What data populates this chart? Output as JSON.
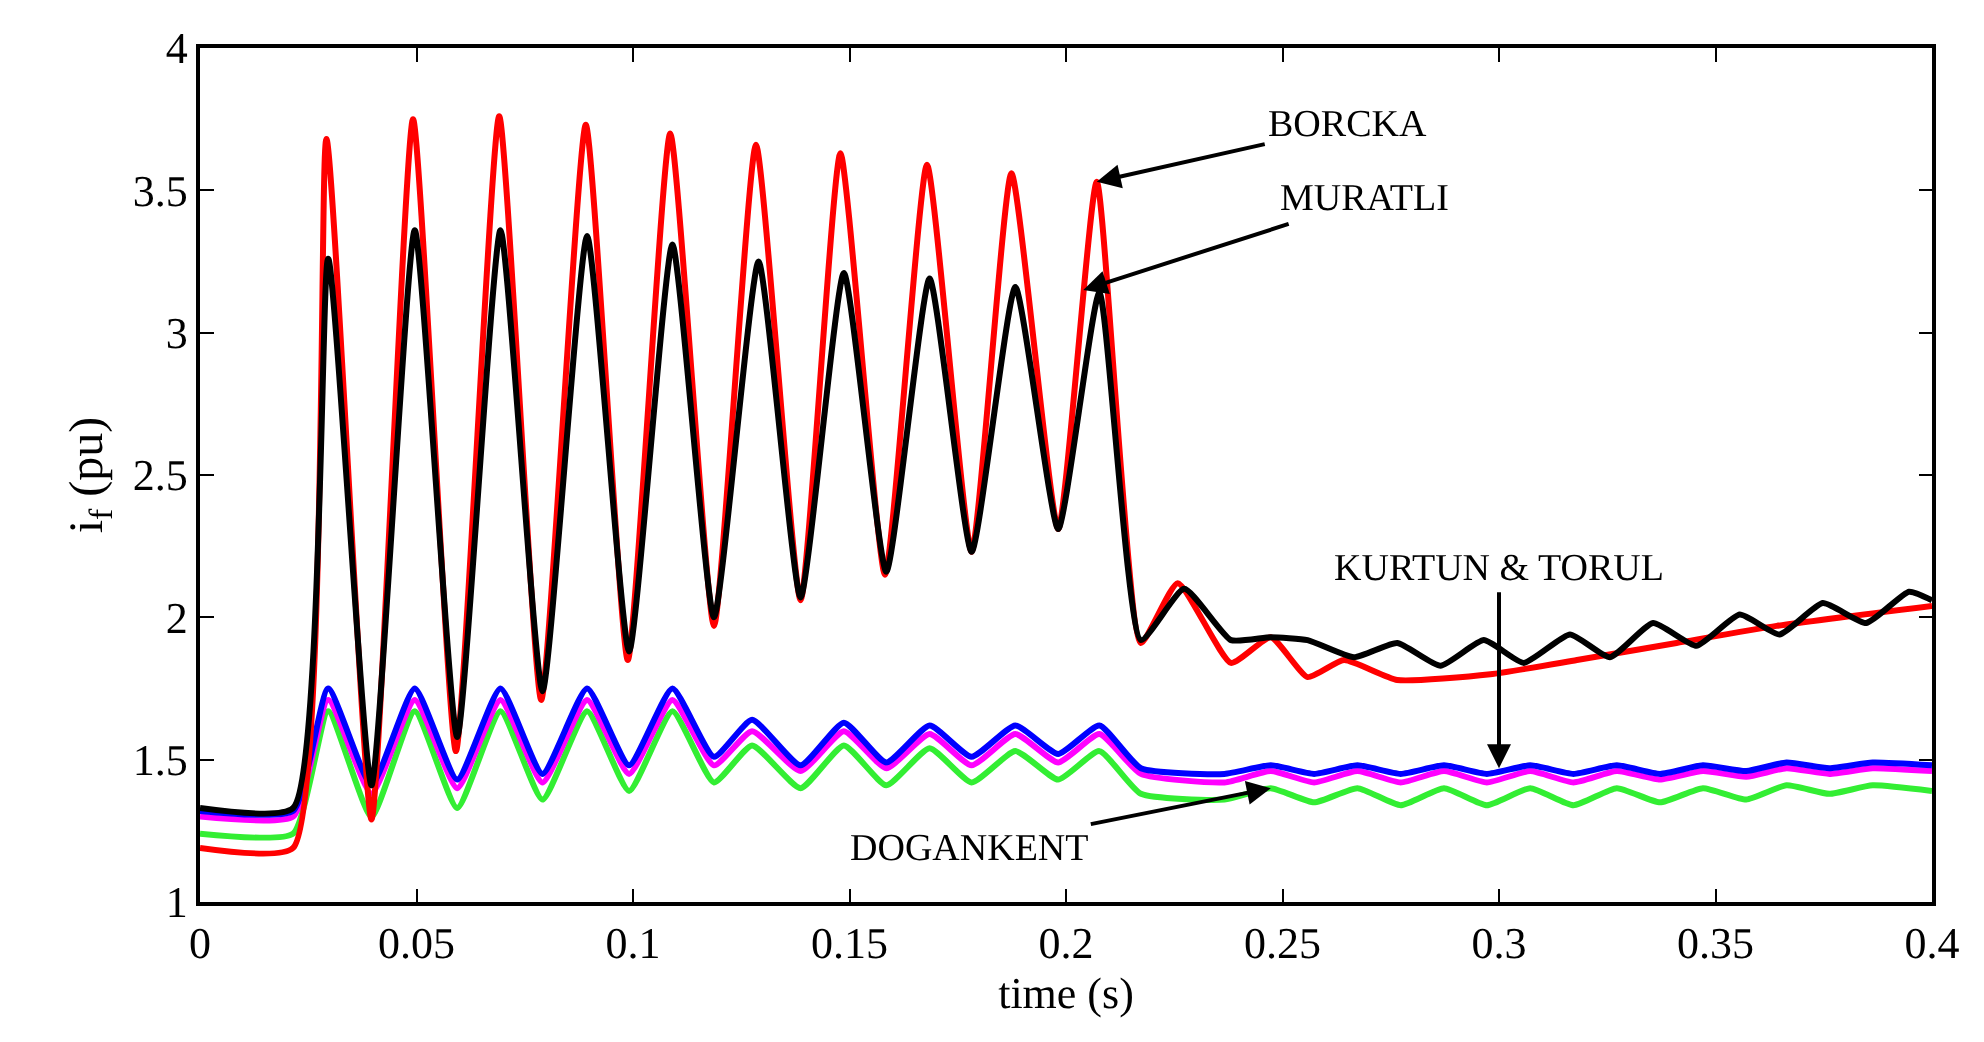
{
  "chart_data": {
    "type": "line",
    "xlabel": "time (s)",
    "ylabel": "i$_{f}$ (pu)",
    "xlim": [
      0,
      0.4
    ],
    "xticks": [
      0,
      0.05,
      0.1,
      0.15,
      0.2,
      0.25,
      0.3,
      0.35,
      0.4
    ],
    "ylim": [
      1,
      4
    ],
    "yticks": [
      1,
      1.5,
      2,
      2.5,
      3,
      3.5,
      4
    ],
    "marker": "none",
    "line_style": "solid",
    "series": [
      {
        "color": "#33ee33",
        "x": [
          0,
          0.0215,
          0.0296,
          0.0396,
          0.0496,
          0.0594,
          0.0694,
          0.0791,
          0.0894,
          0.0991,
          0.1091,
          0.1187,
          0.1275,
          0.1387,
          0.1487,
          0.1585,
          0.1685,
          0.1782,
          0.1883,
          0.1982,
          0.2077,
          0.2173,
          0.2366,
          0.2473,
          0.2573,
          0.2673,
          0.2773,
          0.2873,
          0.2972,
          0.3072,
          0.3172,
          0.3272,
          0.3372,
          0.3471,
          0.3571,
          0.3664,
          0.3763,
          0.3863,
          0.4
        ],
        "values": [
          1.24,
          1.24,
          1.67,
          1.3,
          1.67,
          1.33,
          1.67,
          1.36,
          1.67,
          1.39,
          1.67,
          1.42,
          1.55,
          1.4,
          1.55,
          1.41,
          1.54,
          1.42,
          1.53,
          1.43,
          1.53,
          1.38,
          1.36,
          1.4,
          1.35,
          1.4,
          1.34,
          1.4,
          1.34,
          1.4,
          1.34,
          1.4,
          1.35,
          1.4,
          1.36,
          1.41,
          1.38,
          1.41,
          1.39
        ]
      },
      {
        "color": "#ff00ff",
        "x": [
          0,
          0.0215,
          0.0296,
          0.0396,
          0.0496,
          0.0594,
          0.0694,
          0.0791,
          0.0894,
          0.0991,
          0.1091,
          0.1187,
          0.1275,
          0.1387,
          0.1487,
          0.1585,
          0.1685,
          0.1782,
          0.1883,
          0.1982,
          0.2077,
          0.2173,
          0.2366,
          0.2473,
          0.2573,
          0.2673,
          0.2773,
          0.2873,
          0.2972,
          0.3072,
          0.3172,
          0.3272,
          0.3372,
          0.3471,
          0.3571,
          0.3664,
          0.3763,
          0.3863,
          0.4
        ],
        "values": [
          1.3,
          1.3,
          1.71,
          1.38,
          1.71,
          1.4,
          1.71,
          1.42,
          1.71,
          1.45,
          1.71,
          1.48,
          1.6,
          1.46,
          1.6,
          1.47,
          1.59,
          1.48,
          1.59,
          1.49,
          1.59,
          1.45,
          1.42,
          1.46,
          1.42,
          1.46,
          1.42,
          1.46,
          1.42,
          1.46,
          1.42,
          1.46,
          1.43,
          1.46,
          1.44,
          1.47,
          1.45,
          1.47,
          1.46
        ]
      },
      {
        "color": "#0000ff",
        "x": [
          0,
          0.0215,
          0.0296,
          0.0396,
          0.0496,
          0.0594,
          0.0694,
          0.0791,
          0.0894,
          0.0991,
          0.1091,
          0.1187,
          0.1275,
          0.1387,
          0.1487,
          0.1585,
          0.1685,
          0.1782,
          0.1883,
          0.1982,
          0.2077,
          0.2173,
          0.2366,
          0.2473,
          0.2573,
          0.2673,
          0.2773,
          0.2873,
          0.2972,
          0.3072,
          0.3172,
          0.3272,
          0.3372,
          0.3471,
          0.3571,
          0.3664,
          0.3763,
          0.3863,
          0.4
        ],
        "values": [
          1.32,
          1.32,
          1.75,
          1.41,
          1.75,
          1.43,
          1.75,
          1.45,
          1.75,
          1.48,
          1.75,
          1.51,
          1.64,
          1.48,
          1.63,
          1.49,
          1.62,
          1.51,
          1.62,
          1.52,
          1.62,
          1.47,
          1.45,
          1.48,
          1.45,
          1.48,
          1.45,
          1.48,
          1.45,
          1.48,
          1.45,
          1.48,
          1.45,
          1.48,
          1.46,
          1.49,
          1.47,
          1.49,
          1.48
        ]
      },
      {
        "color": "#ff0000",
        "x": [
          0,
          0.0215,
          0.0292,
          0.0396,
          0.0492,
          0.0591,
          0.0691,
          0.0788,
          0.0891,
          0.0988,
          0.1086,
          0.1187,
          0.1284,
          0.1387,
          0.1479,
          0.1582,
          0.1679,
          0.1782,
          0.1874,
          0.1982,
          0.2071,
          0.2173,
          0.2258,
          0.2381,
          0.2473,
          0.2558,
          0.2642,
          0.2765,
          0.298,
          0.318,
          0.341,
          0.3641,
          0.4
        ],
        "values": [
          1.19,
          1.19,
          3.68,
          1.29,
          3.75,
          1.53,
          3.76,
          1.71,
          3.73,
          1.85,
          3.7,
          1.97,
          3.66,
          2.06,
          3.63,
          2.15,
          3.59,
          2.23,
          3.56,
          2.31,
          3.53,
          1.91,
          2.12,
          1.84,
          1.93,
          1.79,
          1.85,
          1.78,
          1.8,
          1.85,
          1.91,
          1.97,
          2.04
        ]
      },
      {
        "color": "#000000",
        "x": [
          0,
          0.0215,
          0.0296,
          0.0396,
          0.0496,
          0.0594,
          0.0694,
          0.0791,
          0.0894,
          0.0991,
          0.1091,
          0.1187,
          0.129,
          0.1387,
          0.1487,
          0.1585,
          0.1685,
          0.1782,
          0.1883,
          0.1982,
          0.2077,
          0.2173,
          0.2273,
          0.2381,
          0.2473,
          0.2558,
          0.2665,
          0.2765,
          0.2865,
          0.2965,
          0.3057,
          0.3164,
          0.3256,
          0.3356,
          0.3456,
          0.3556,
          0.3648,
          0.3748,
          0.3848,
          0.3947,
          0.4
        ],
        "values": [
          1.33,
          1.33,
          3.26,
          1.41,
          3.36,
          1.58,
          3.36,
          1.74,
          3.34,
          1.88,
          3.31,
          2.0,
          3.25,
          2.07,
          3.21,
          2.16,
          3.19,
          2.23,
          3.16,
          2.31,
          3.14,
          1.92,
          2.1,
          1.92,
          1.93,
          1.92,
          1.86,
          1.91,
          1.83,
          1.92,
          1.84,
          1.94,
          1.86,
          1.98,
          1.9,
          2.01,
          1.94,
          2.05,
          1.98,
          2.09,
          2.06
        ]
      }
    ],
    "annotations": [
      {
        "text": "BORCKA",
        "x": 0.2071,
        "y": 3.53
      },
      {
        "text": "MURATLI",
        "x": 0.204,
        "y": 3.15
      },
      {
        "text": "KURTUN & TORUL",
        "x": 0.3,
        "y": 1.47
      },
      {
        "text": "DOGANKENT",
        "x": 0.2473,
        "y": 1.4
      }
    ]
  }
}
